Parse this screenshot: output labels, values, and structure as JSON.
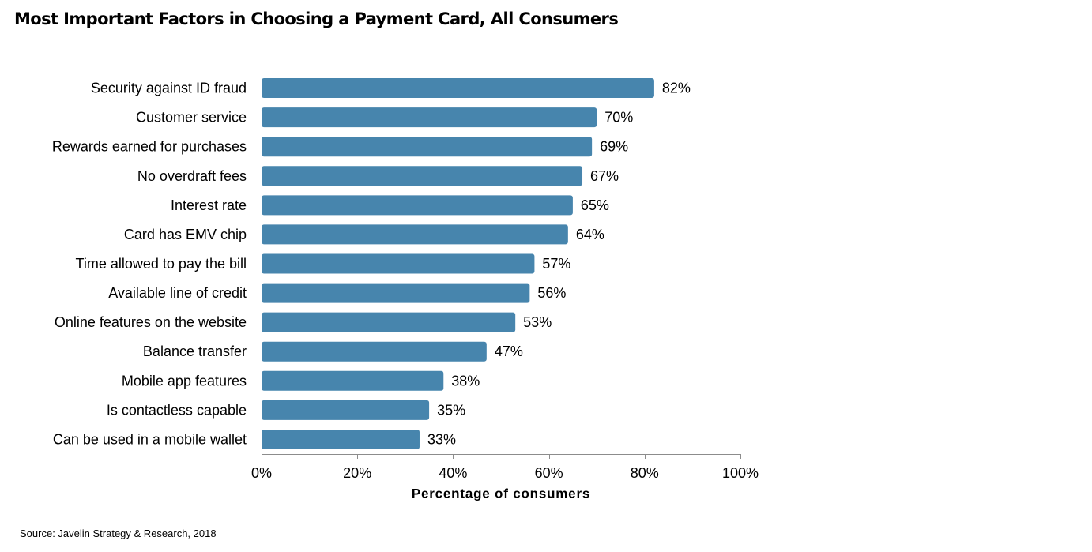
{
  "title": "Most Important Factors in Choosing a Payment Card, All Consumers",
  "source": "Source: Javelin Strategy & Research, 2018",
  "chart_data": {
    "type": "bar",
    "orientation": "horizontal",
    "title": "Most Important Factors in Choosing a Payment Card, All Consumers",
    "xlabel": "Percentage of consumers",
    "ylabel": "",
    "categories": [
      "Security against ID fraud",
      "Customer service",
      "Rewards earned for purchases",
      "No overdraft fees",
      "Interest rate",
      "Card has EMV chip",
      "Time allowed to pay the bill",
      "Available line of credit",
      "Online features on the website",
      "Balance transfer",
      "Mobile app features",
      "Is contactless capable",
      "Can be used in a mobile wallet"
    ],
    "values": [
      82,
      70,
      69,
      67,
      65,
      64,
      57,
      56,
      53,
      47,
      38,
      35,
      33
    ],
    "value_labels": [
      "82%",
      "70%",
      "69%",
      "67%",
      "65%",
      "64%",
      "57%",
      "56%",
      "53%",
      "47%",
      "38%",
      "35%",
      "33%"
    ],
    "xlim": [
      0,
      100
    ],
    "xticks": [
      0,
      20,
      40,
      60,
      80,
      100
    ],
    "xtick_labels": [
      "0%",
      "20%",
      "40%",
      "60%",
      "80%",
      "100%"
    ],
    "grid": false,
    "legend": "none",
    "bar_color": "#4785ad"
  }
}
